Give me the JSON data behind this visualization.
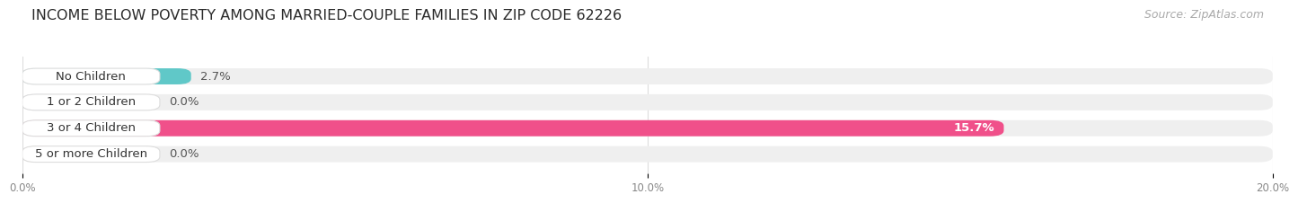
{
  "title": "INCOME BELOW POVERTY AMONG MARRIED-COUPLE FAMILIES IN ZIP CODE 62226",
  "source": "Source: ZipAtlas.com",
  "categories": [
    "No Children",
    "1 or 2 Children",
    "3 or 4 Children",
    "5 or more Children"
  ],
  "values": [
    2.7,
    0.0,
    15.7,
    0.0
  ],
  "bar_colors": [
    "#60c8c8",
    "#aaaadd",
    "#f0508a",
    "#f5c890"
  ],
  "background_color": "#ffffff",
  "bar_bg_color": "#efefef",
  "xlim_data": [
    0,
    20.0
  ],
  "xticks": [
    0.0,
    10.0,
    20.0
  ],
  "xtick_labels": [
    "0.0%",
    "10.0%",
    "20.0%"
  ],
  "title_fontsize": 11.5,
  "source_fontsize": 9,
  "label_fontsize": 9.5,
  "value_fontsize": 9.5,
  "bar_height": 0.62,
  "value_label_color_inside": "#ffffff",
  "value_label_color_outside": "#555555",
  "label_text_color": "#333333",
  "grid_color": "#dddddd",
  "tick_color": "#888888"
}
